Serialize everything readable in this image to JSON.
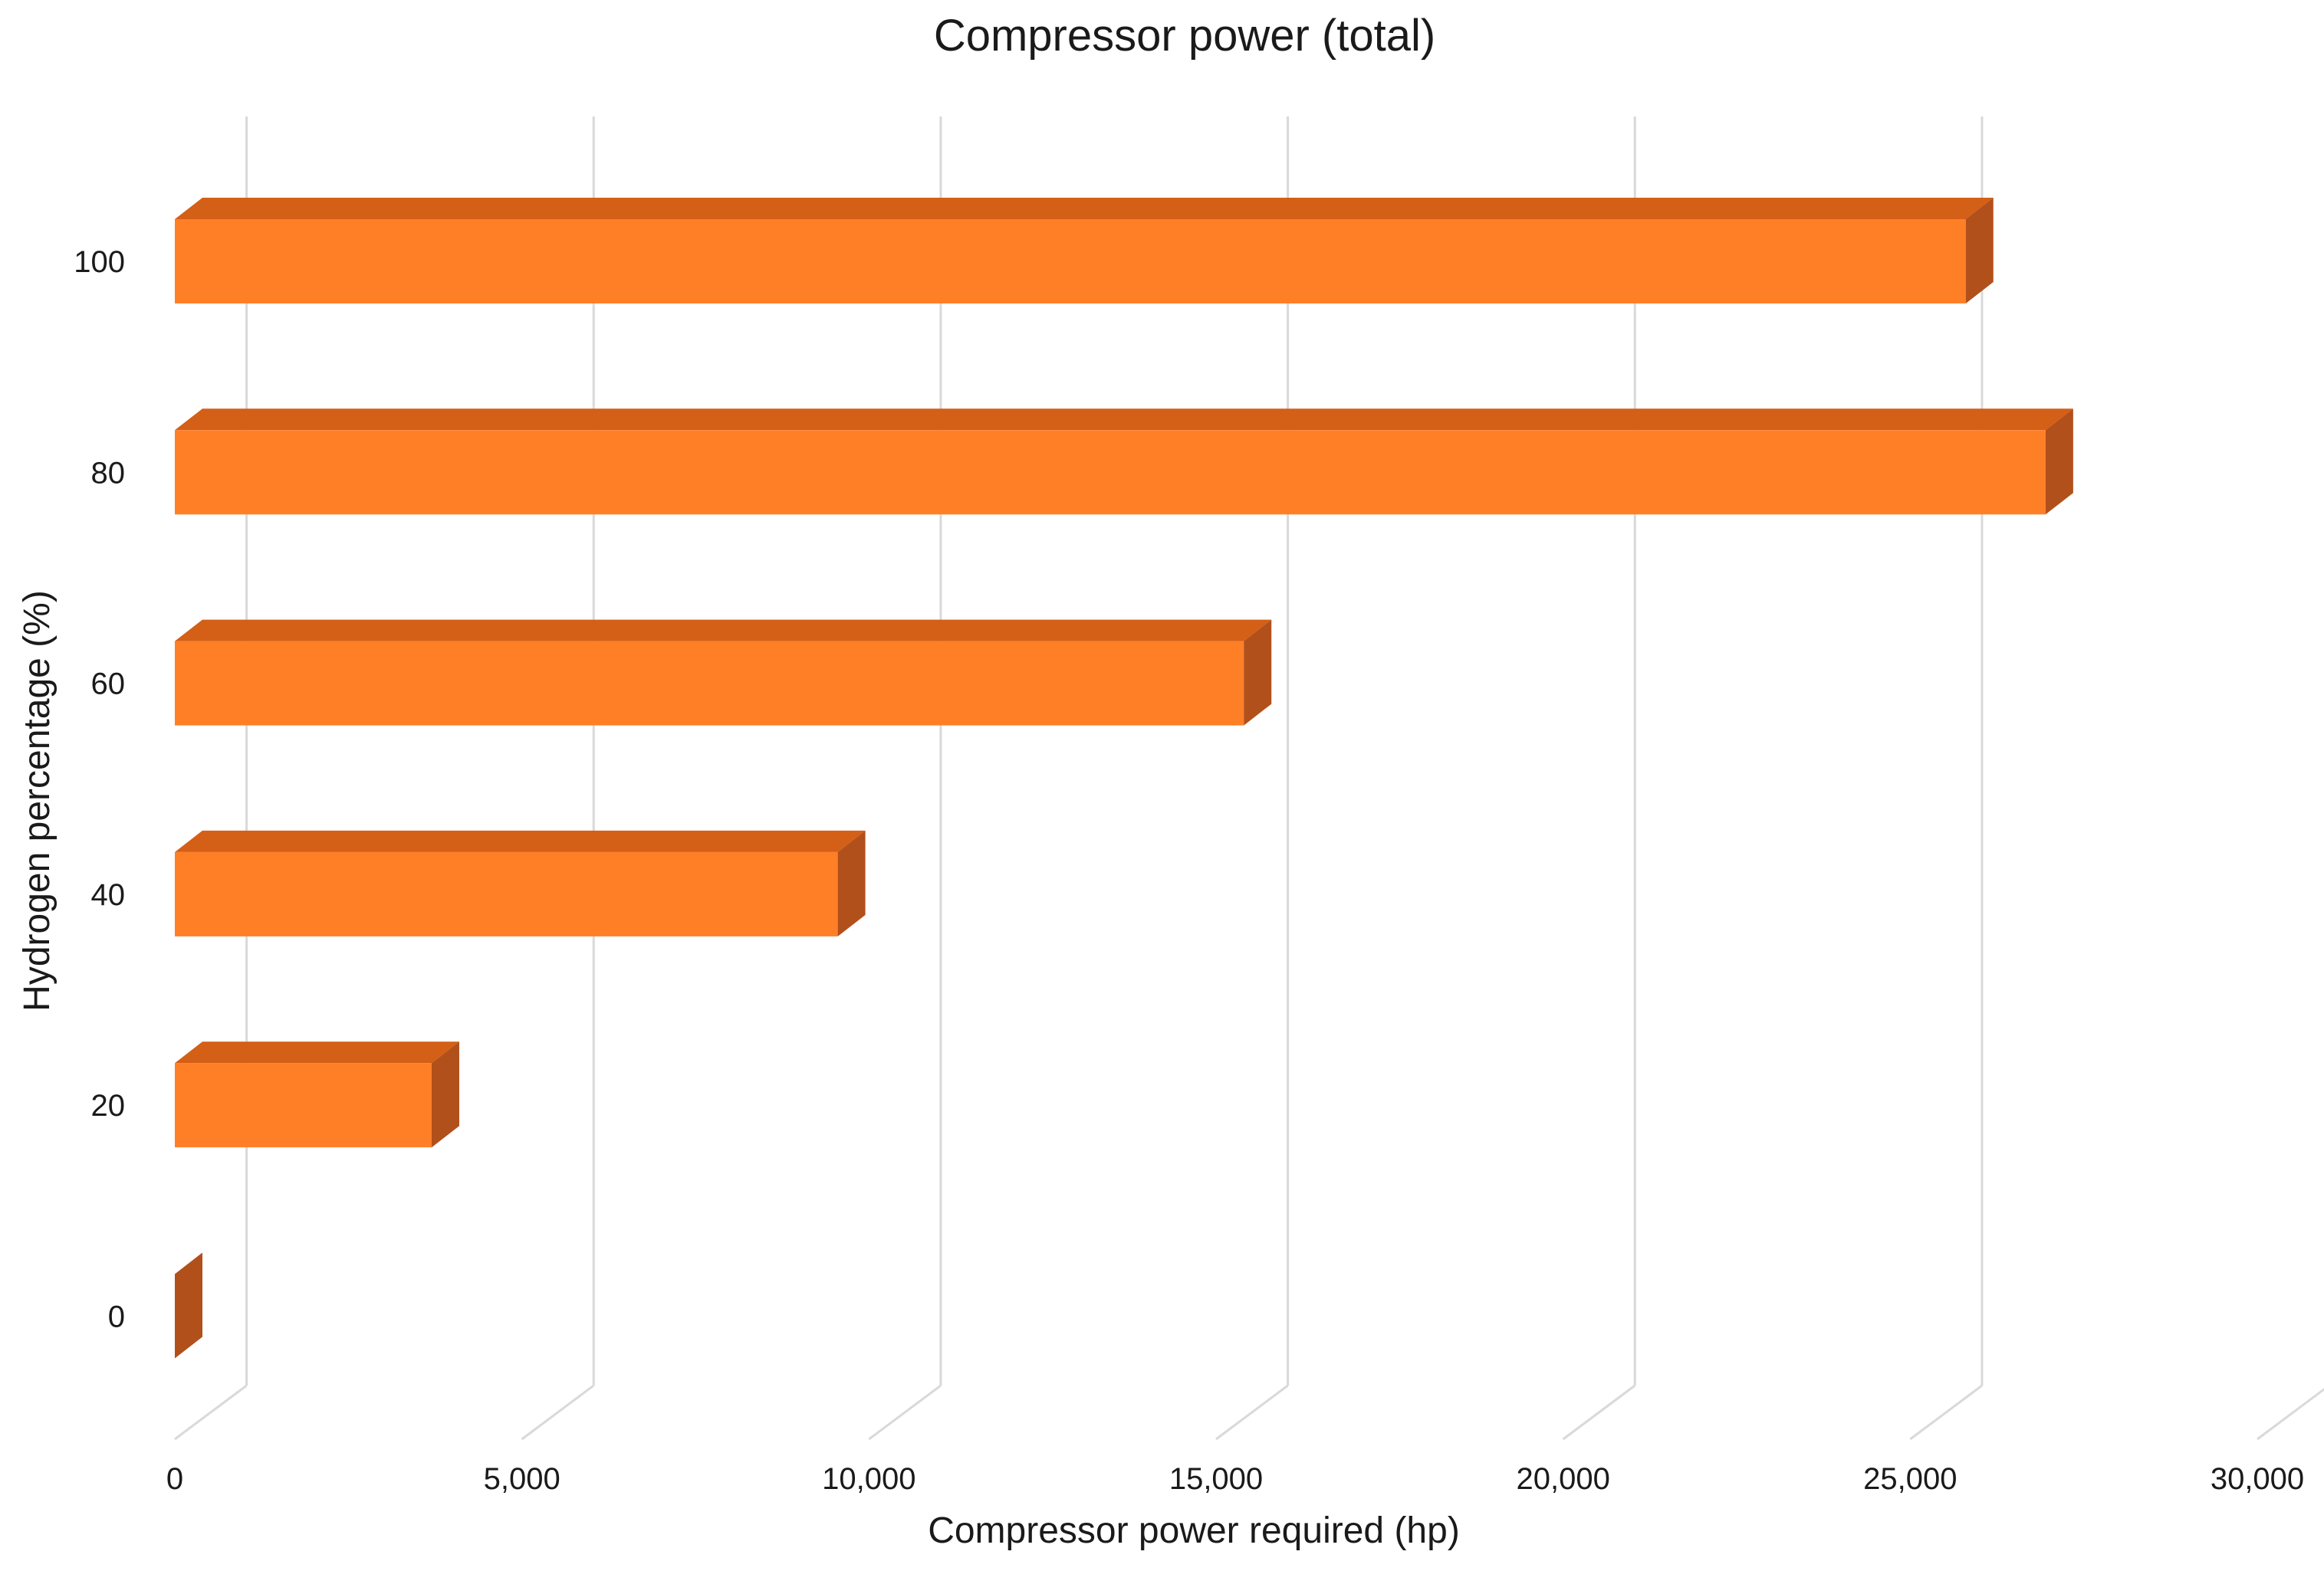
{
  "chart_data": {
    "type": "bar",
    "orientation": "horizontal",
    "style": "3d",
    "title": "Compressor power (total)",
    "xlabel": "Compressor power required (hp)",
    "ylabel": "Hydrogen percentage (%)",
    "categories": [
      "100",
      "80",
      "60",
      "40",
      "20",
      "0"
    ],
    "values": [
      25800,
      26950,
      15400,
      9550,
      3700,
      0
    ],
    "xlim": [
      0,
      30000
    ],
    "xticks": [
      "0",
      "5,000",
      "10,000",
      "15,000",
      "20,000",
      "25,000",
      "30,000"
    ],
    "xtick_values": [
      0,
      5000,
      10000,
      15000,
      20000,
      25000,
      30000
    ],
    "grid": true,
    "legend": "none",
    "colors": {
      "bar_front": "#FF7F27",
      "bar_top": "#D45F16",
      "bar_side": "#B1501A",
      "grid": "#D9D9D9"
    }
  }
}
